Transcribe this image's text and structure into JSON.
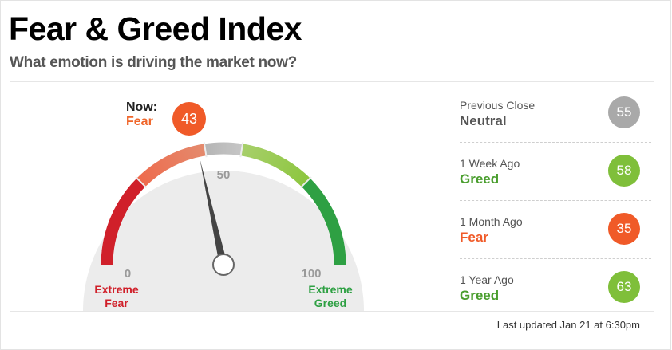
{
  "header": {
    "title": "Fear & Greed Index",
    "subtitle": "What emotion is driving the market now?"
  },
  "gauge": {
    "now_label": "Now:",
    "now_value_label": "Fear",
    "now_value": "43",
    "score": 43,
    "min_label": "0",
    "mid_label": "50",
    "max_label": "100",
    "left_caption_line1": "Extreme",
    "left_caption_line2": "Fear",
    "right_caption_line1": "Extreme",
    "right_caption_line2": "Greed"
  },
  "history": [
    {
      "label": "Previous Close",
      "value_label": "Neutral",
      "value": "55",
      "text_color": "#555555",
      "badge_color": "#a9a9a9"
    },
    {
      "label": "1 Week Ago",
      "value_label": "Greed",
      "value": "58",
      "text_color": "#4a9e2e",
      "badge_color": "#7fbf3a"
    },
    {
      "label": "1 Month Ago",
      "value_label": "Fear",
      "value": "35",
      "text_color": "#f05a28",
      "badge_color": "#f05a28"
    },
    {
      "label": "1 Year Ago",
      "value_label": "Greed",
      "value": "63",
      "text_color": "#4a9e2e",
      "badge_color": "#7fbf3a"
    }
  ],
  "footer": {
    "updated": "Last updated Jan 21 at 6:30pm"
  },
  "colors": {
    "extreme_fear": "#d0202a",
    "fear": "#ee6b4d",
    "neutral": "#b5b5b5",
    "greed": "#8dc63f",
    "extreme_greed": "#2ea043"
  }
}
